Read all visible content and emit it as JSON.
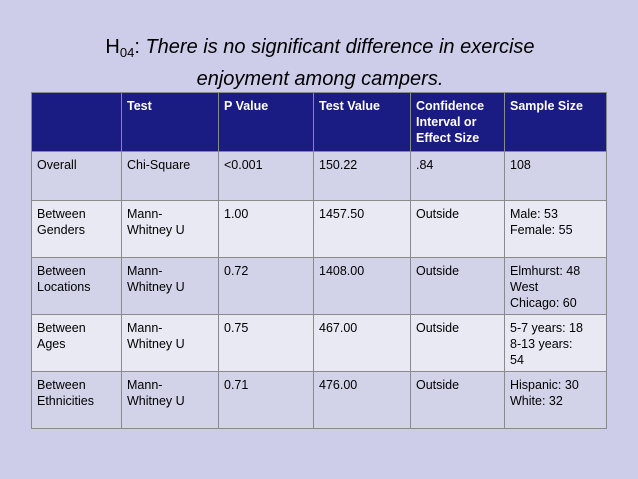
{
  "title": {
    "h_main": "H",
    "h_sub": "04",
    "colon": ": ",
    "line1": "There is no significant difference in exercise",
    "line2": "enjoyment among campers."
  },
  "table": {
    "headers": [
      [
        ""
      ],
      [
        "Test"
      ],
      [
        "P Value"
      ],
      [
        "Test Value"
      ],
      [
        "Confidence",
        "Interval or",
        "Effect Size"
      ],
      [
        "Sample Size"
      ]
    ],
    "rows": [
      {
        "cells": [
          [
            "Overall"
          ],
          [
            "Chi-Square"
          ],
          [
            "<0.001"
          ],
          [
            "150.22"
          ],
          [
            ".84"
          ],
          [
            "108"
          ]
        ]
      },
      {
        "cells": [
          [
            "Between",
            "Genders"
          ],
          [
            "Mann-",
            "Whitney U"
          ],
          [
            " 1.00"
          ],
          [
            "1457.50"
          ],
          [
            "Outside"
          ],
          [
            "Male: 53",
            "Female: 55"
          ]
        ]
      },
      {
        "cells": [
          [
            "Between",
            "Locations"
          ],
          [
            "Mann-",
            "Whitney U"
          ],
          [
            "0.72"
          ],
          [
            "1408.00"
          ],
          [
            "Outside"
          ],
          [
            "Elmhurst: 48",
            "West",
            "Chicago: 60"
          ]
        ]
      },
      {
        "cells": [
          [
            "Between",
            "Ages"
          ],
          [
            "Mann-",
            "Whitney U"
          ],
          [
            "0.75"
          ],
          [
            "467.00"
          ],
          [
            "Outside"
          ],
          [
            "5-7 years: 18",
            "8-13 years:",
            "54"
          ]
        ]
      },
      {
        "cells": [
          [
            "Between",
            "Ethnicities"
          ],
          [
            "Mann-",
            "Whitney U"
          ],
          [
            "0.71"
          ],
          [
            "476.00"
          ],
          [
            "Outside"
          ],
          [
            "Hispanic: 30",
            "White: 32"
          ]
        ]
      }
    ]
  }
}
